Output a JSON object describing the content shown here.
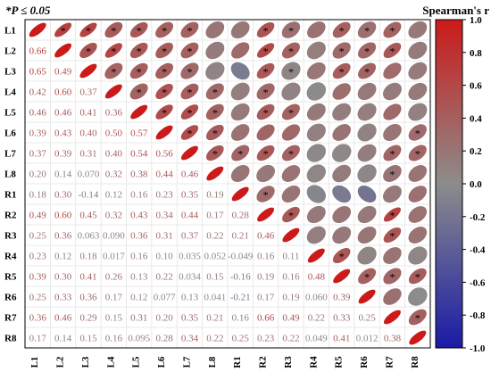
{
  "chart_data": {
    "type": "heatmap",
    "annotation": "*P ≤ 0.05",
    "legend_title": "Spearman's r",
    "labels": [
      "L1",
      "L2",
      "L3",
      "L4",
      "L5",
      "L6",
      "L7",
      "L8",
      "R1",
      "R2",
      "R3",
      "R4",
      "R5",
      "R6",
      "R7",
      "R8"
    ],
    "colorbar": {
      "range": [
        -1.0,
        1.0
      ],
      "ticks": [
        "1.0",
        "0.8",
        "0.6",
        "0.4",
        "0.2",
        "0.0",
        "-0.2",
        "-0.4",
        "-0.6",
        "-0.8",
        "-1.0"
      ],
      "colors": {
        "positive": "#cc1a1a",
        "neutral": "#8c8c8c",
        "negative": "#1a1aa6"
      }
    },
    "lower_labels": [
      [],
      [
        "0.66"
      ],
      [
        "0.65",
        "0.49"
      ],
      [
        "0.42",
        "0.60",
        "0.37"
      ],
      [
        "0.46",
        "0.46",
        "0.41",
        "0.36"
      ],
      [
        "0.39",
        "0.43",
        "0.40",
        "0.50",
        "0.57"
      ],
      [
        "0.37",
        "0.39",
        "0.31",
        "0.40",
        "0.54",
        "0.56"
      ],
      [
        "0.20",
        "0.14",
        "0.070",
        "0.32",
        "0.38",
        "0.44",
        "0.46"
      ],
      [
        "0.18",
        "0.30",
        "-0.14",
        "0.12",
        "0.16",
        "0.23",
        "0.35",
        "0.19"
      ],
      [
        "0.49",
        "0.60",
        "0.45",
        "0.32",
        "0.43",
        "0.34",
        "0.44",
        "0.17",
        "0.28"
      ],
      [
        "0.25",
        "0.36",
        "0.063",
        "0.090",
        "0.36",
        "0.31",
        "0.37",
        "0.22",
        "0.21",
        "0.46"
      ],
      [
        "0.23",
        "0.12",
        "0.18",
        "0.017",
        "0.16",
        "0.10",
        "0.035",
        "0.052",
        "-0.049",
        "0.16",
        "0.11"
      ],
      [
        "0.39",
        "0.30",
        "0.41",
        "0.26",
        "0.13",
        "0.22",
        "0.034",
        "0.15",
        "-0.16",
        "0.19",
        "0.16",
        "0.48"
      ],
      [
        "0.25",
        "0.33",
        "0.36",
        "0.17",
        "0.12",
        "0.077",
        "0.13",
        "0.041",
        "-0.21",
        "0.17",
        "0.19",
        "0.060",
        "0.39"
      ],
      [
        "0.36",
        "0.46",
        "0.29",
        "0.15",
        "0.31",
        "0.20",
        "0.35",
        "0.21",
        "0.16",
        "0.66",
        "0.49",
        "0.22",
        "0.33",
        "0.25"
      ],
      [
        "0.17",
        "0.14",
        "0.15",
        "0.16",
        "0.095",
        "0.28",
        "0.34",
        "0.22",
        "0.25",
        "0.23",
        "0.22",
        "0.049",
        "0.41",
        "0.012",
        "0.38"
      ]
    ],
    "significant_pairs": [
      [
        "L1",
        "L2"
      ],
      [
        "L1",
        "L3"
      ],
      [
        "L1",
        "L4"
      ],
      [
        "L1",
        "L5"
      ],
      [
        "L1",
        "L6"
      ],
      [
        "L1",
        "L7"
      ],
      [
        "L1",
        "R2"
      ],
      [
        "L1",
        "R3"
      ],
      [
        "L1",
        "R5"
      ],
      [
        "L1",
        "R6"
      ],
      [
        "L1",
        "R7"
      ],
      [
        "L2",
        "L3"
      ],
      [
        "L2",
        "L4"
      ],
      [
        "L2",
        "L5"
      ],
      [
        "L2",
        "L6"
      ],
      [
        "L2",
        "L7"
      ],
      [
        "L2",
        "R2"
      ],
      [
        "L2",
        "R3"
      ],
      [
        "L2",
        "R5"
      ],
      [
        "L2",
        "R6"
      ],
      [
        "L2",
        "R7"
      ],
      [
        "L3",
        "L4"
      ],
      [
        "L3",
        "L5"
      ],
      [
        "L3",
        "L6"
      ],
      [
        "L3",
        "L7"
      ],
      [
        "L3",
        "R2"
      ],
      [
        "L3",
        "R3"
      ],
      [
        "L3",
        "R5"
      ],
      [
        "L3",
        "R6"
      ],
      [
        "L4",
        "L5"
      ],
      [
        "L4",
        "L6"
      ],
      [
        "L4",
        "L7"
      ],
      [
        "L4",
        "L8"
      ],
      [
        "L4",
        "R2"
      ],
      [
        "L5",
        "L6"
      ],
      [
        "L5",
        "L7"
      ],
      [
        "L5",
        "L8"
      ],
      [
        "L5",
        "R2"
      ],
      [
        "L5",
        "R3"
      ],
      [
        "L6",
        "L7"
      ],
      [
        "L6",
        "L8"
      ],
      [
        "L6",
        "R8"
      ],
      [
        "L7",
        "L8"
      ],
      [
        "L7",
        "R1"
      ],
      [
        "L7",
        "R2"
      ],
      [
        "L7",
        "R3"
      ],
      [
        "L7",
        "R7"
      ],
      [
        "L7",
        "R8"
      ],
      [
        "L8",
        "R7"
      ],
      [
        "R1",
        "R2"
      ],
      [
        "R2",
        "R3"
      ],
      [
        "R2",
        "R7"
      ],
      [
        "R3",
        "R7"
      ],
      [
        "R4",
        "R5"
      ],
      [
        "R5",
        "R6"
      ],
      [
        "R5",
        "R7"
      ],
      [
        "R5",
        "R8"
      ],
      [
        "R7",
        "R8"
      ]
    ]
  }
}
